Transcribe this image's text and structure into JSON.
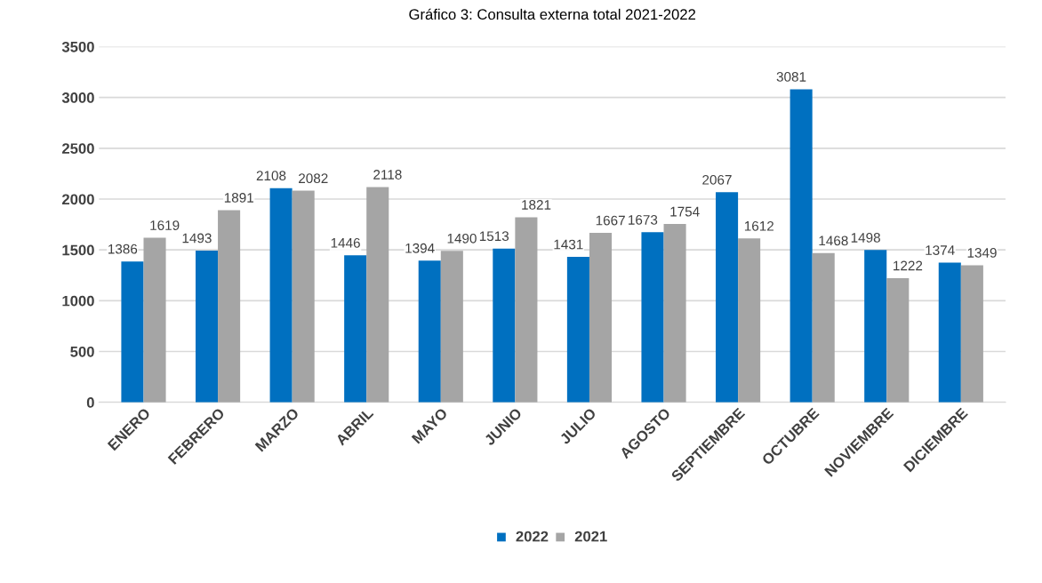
{
  "chart_data": {
    "type": "bar",
    "title": "Gráfico 3: Consulta externa total 2021-2022",
    "categories": [
      "ENERO",
      "FEBRERO",
      "MARZO",
      "ABRIL",
      "MAYO",
      "JUNIO",
      "JULIO",
      "AGOSTO",
      "SEPTIEMBRE",
      "OCTUBRE",
      "NOVIEMBRE",
      "DICIEMBRE"
    ],
    "series": [
      {
        "name": "2022",
        "color": "#0070c0",
        "values": [
          1386,
          1493,
          2108,
          1446,
          1394,
          1513,
          1431,
          1673,
          2067,
          3081,
          1498,
          1374
        ]
      },
      {
        "name": "2021",
        "color": "#a5a5a5",
        "values": [
          1619,
          1891,
          2082,
          2118,
          1490,
          1821,
          1667,
          1754,
          1612,
          1468,
          1222,
          1349
        ]
      }
    ],
    "ylim": [
      0,
      3500
    ],
    "yticks": [
      0,
      500,
      1000,
      1500,
      2000,
      2500,
      3000,
      3500
    ],
    "grid": "y",
    "legend": "bottom",
    "data_labels": true
  }
}
